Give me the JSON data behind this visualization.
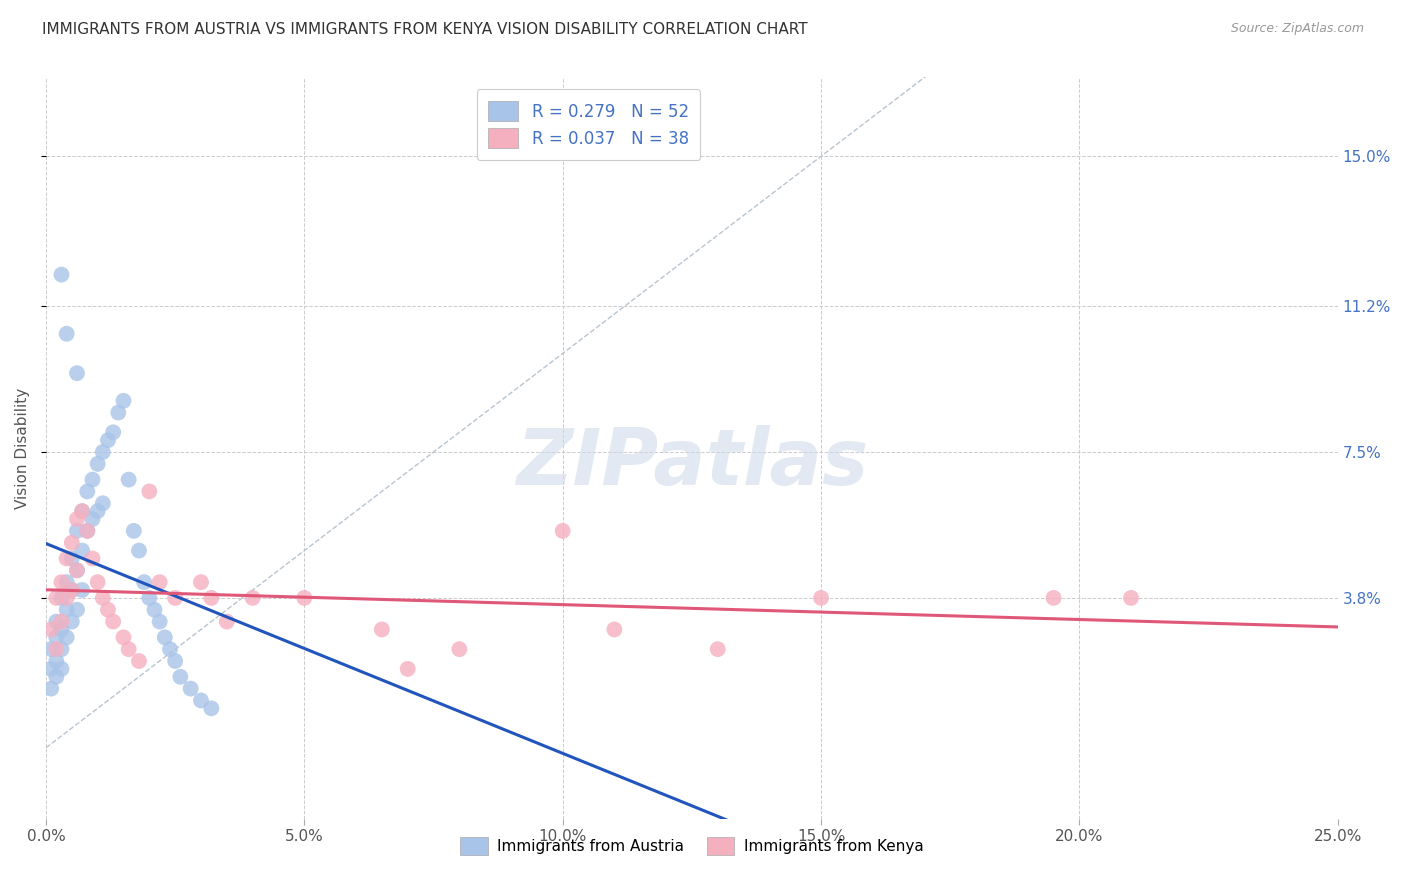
{
  "title": "IMMIGRANTS FROM AUSTRIA VS IMMIGRANTS FROM KENYA VISION DISABILITY CORRELATION CHART",
  "source": "Source: ZipAtlas.com",
  "ylabel": "Vision Disability",
  "ytick_labels": [
    "15.0%",
    "11.2%",
    "7.5%",
    "3.8%"
  ],
  "ytick_values": [
    0.15,
    0.112,
    0.075,
    0.038
  ],
  "xlim": [
    0.0,
    0.25
  ],
  "ylim": [
    -0.018,
    0.17
  ],
  "color_austria": "#a8c4e8",
  "color_kenya": "#f5b0c0",
  "color_line_austria": "#2255bb",
  "color_line_kenya": "#e05878",
  "color_diag": "#b8c4d0",
  "watermark": "ZIPatlas",
  "background_color": "#ffffff",
  "grid_color": "#cccccc",
  "austria_x": [
    0.001,
    0.001,
    0.001,
    0.002,
    0.002,
    0.002,
    0.002,
    0.003,
    0.003,
    0.003,
    0.003,
    0.004,
    0.004,
    0.004,
    0.005,
    0.005,
    0.005,
    0.006,
    0.006,
    0.006,
    0.007,
    0.007,
    0.007,
    0.008,
    0.008,
    0.009,
    0.009,
    0.01,
    0.01,
    0.011,
    0.011,
    0.012,
    0.013,
    0.014,
    0.015,
    0.016,
    0.017,
    0.018,
    0.019,
    0.02,
    0.021,
    0.022,
    0.023,
    0.024,
    0.025,
    0.026,
    0.028,
    0.03,
    0.032,
    0.003,
    0.004,
    0.006
  ],
  "austria_y": [
    0.025,
    0.02,
    0.015,
    0.032,
    0.028,
    0.022,
    0.018,
    0.038,
    0.03,
    0.025,
    0.02,
    0.042,
    0.035,
    0.028,
    0.048,
    0.04,
    0.032,
    0.055,
    0.045,
    0.035,
    0.06,
    0.05,
    0.04,
    0.065,
    0.055,
    0.068,
    0.058,
    0.072,
    0.06,
    0.075,
    0.062,
    0.078,
    0.08,
    0.085,
    0.088,
    0.068,
    0.055,
    0.05,
    0.042,
    0.038,
    0.035,
    0.032,
    0.028,
    0.025,
    0.022,
    0.018,
    0.015,
    0.012,
    0.01,
    0.12,
    0.105,
    0.095
  ],
  "kenya_x": [
    0.001,
    0.002,
    0.002,
    0.003,
    0.003,
    0.004,
    0.004,
    0.005,
    0.005,
    0.006,
    0.006,
    0.007,
    0.008,
    0.009,
    0.01,
    0.011,
    0.012,
    0.013,
    0.015,
    0.016,
    0.018,
    0.02,
    0.022,
    0.025,
    0.03,
    0.032,
    0.035,
    0.04,
    0.05,
    0.065,
    0.07,
    0.08,
    0.1,
    0.11,
    0.13,
    0.15,
    0.195,
    0.21
  ],
  "kenya_y": [
    0.03,
    0.038,
    0.025,
    0.042,
    0.032,
    0.048,
    0.038,
    0.052,
    0.04,
    0.058,
    0.045,
    0.06,
    0.055,
    0.048,
    0.042,
    0.038,
    0.035,
    0.032,
    0.028,
    0.025,
    0.022,
    0.065,
    0.042,
    0.038,
    0.042,
    0.038,
    0.032,
    0.038,
    0.038,
    0.03,
    0.02,
    0.025,
    0.055,
    0.03,
    0.025,
    0.038,
    0.038,
    0.038
  ]
}
